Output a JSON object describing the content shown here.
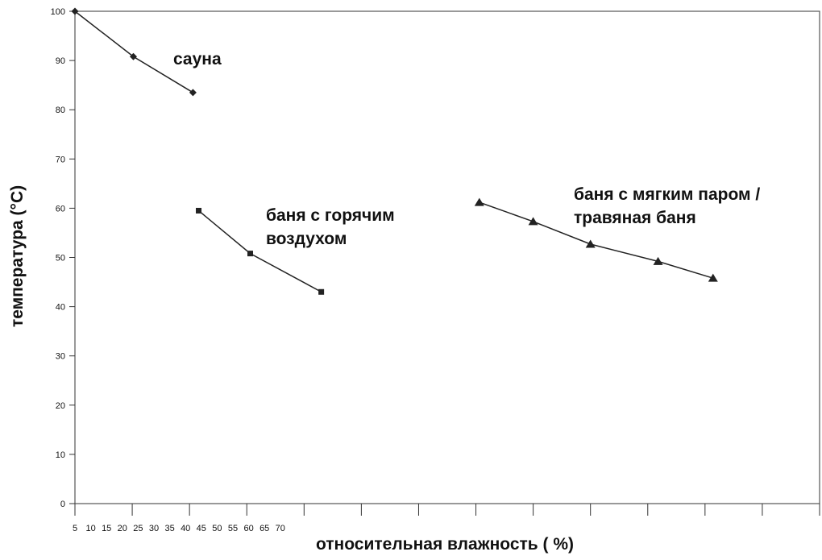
{
  "chart_data": {
    "type": "line",
    "xlabel": "относительная влажность ( %)",
    "ylabel": "температура (°C)",
    "xlim": [
      5,
      70
    ],
    "xticks": [
      5,
      10,
      15,
      20,
      25,
      30,
      35,
      40,
      45,
      50,
      55,
      60,
      65,
      70
    ],
    "ylim": [
      0,
      100
    ],
    "yticks": [
      0,
      10,
      20,
      30,
      40,
      50,
      60,
      70,
      80,
      90,
      100
    ],
    "series": [
      {
        "label": [
          "сауна"
        ],
        "marker": "diamond",
        "color": "#222222",
        "x": [
          5,
          10.1,
          15.3
        ],
        "values": [
          100,
          90.8,
          83.5
        ]
      },
      {
        "label": [
          "баня с горячим",
          "воздухом"
        ],
        "marker": "square",
        "color": "#222222",
        "x": [
          15.8,
          20.3,
          26.5
        ],
        "values": [
          59.5,
          50.8,
          43
        ]
      },
      {
        "label": [
          "баня с мягким паром /",
          "травяная баня"
        ],
        "marker": "triangle",
        "color": "#222222",
        "x": [
          40.3,
          45,
          50,
          55.9,
          60.7
        ],
        "values": [
          61.2,
          57.3,
          52.7,
          49.2,
          45.8
        ]
      }
    ]
  }
}
